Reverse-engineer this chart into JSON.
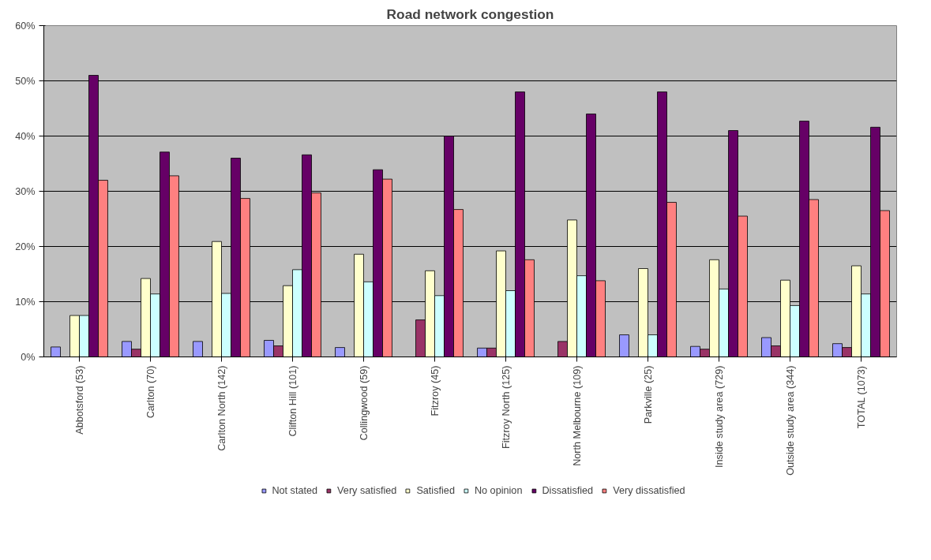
{
  "chart_data": {
    "type": "bar",
    "title": "Road network congestion",
    "categories": [
      "Abbotsford (53)",
      "Carlton (70)",
      "Carlton North (142)",
      "Clifton Hill (101)",
      "Collingwood (59)",
      "Fitzroy (45)",
      "Fitzroy North (125)",
      "North Melbourne (109)",
      "Parkville (25)",
      "Inside study area (729)",
      "Outside study area (344)",
      "TOTAL (1073)"
    ],
    "series": [
      {
        "name": "Not stated",
        "color": "#9999ff",
        "values": [
          1.8,
          2.8,
          2.8,
          3.0,
          1.7,
          0,
          1.6,
          0,
          4.0,
          1.9,
          3.5,
          2.4
        ]
      },
      {
        "name": "Very satisfied",
        "color": "#993366",
        "values": [
          0,
          1.4,
          0,
          2.0,
          0,
          6.7,
          1.6,
          2.8,
          0,
          1.4,
          2.0,
          1.7
        ]
      },
      {
        "name": "Satisfied",
        "color": "#ffffcc",
        "values": [
          7.5,
          14.2,
          20.9,
          12.9,
          18.6,
          15.6,
          19.2,
          24.8,
          16.0,
          17.6,
          13.9,
          16.5
        ]
      },
      {
        "name": "No opinion",
        "color": "#ccffff",
        "values": [
          7.5,
          11.4,
          11.5,
          15.8,
          13.6,
          11.1,
          12.0,
          14.7,
          4.0,
          12.3,
          9.3,
          11.4
        ]
      },
      {
        "name": "Dissatisfied",
        "color": "#660066",
        "values": [
          51,
          37.1,
          36,
          36.6,
          33.9,
          40,
          48,
          44,
          48,
          41,
          42.7,
          41.6
        ]
      },
      {
        "name": "Very dissatisfied",
        "color": "#ff8080",
        "values": [
          32,
          32.8,
          28.7,
          29.7,
          32.2,
          26.7,
          17.6,
          13.8,
          28,
          25.5,
          28.5,
          26.5
        ]
      }
    ],
    "ylim": [
      0,
      60
    ],
    "yticks": [
      {
        "value": 0,
        "label": "0%"
      },
      {
        "value": 10,
        "label": "10%"
      },
      {
        "value": 20,
        "label": "20%"
      },
      {
        "value": 30,
        "label": "30%"
      },
      {
        "value": 40,
        "label": "40%"
      },
      {
        "value": 50,
        "label": "50%"
      },
      {
        "value": 60,
        "label": "60%"
      }
    ],
    "grid": "y",
    "legend": "bottom"
  }
}
